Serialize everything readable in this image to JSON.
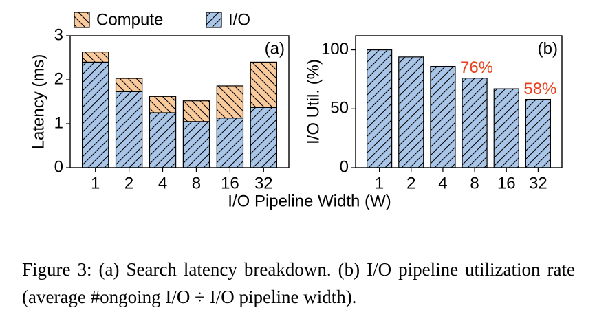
{
  "chart_data": [
    {
      "type": "stacked_bar",
      "ylabel": "Latency (ms)",
      "annotation": "(a)",
      "xlabel": "I/O Pipeline Width (W)",
      "categories": [
        "1",
        "2",
        "4",
        "8",
        "16",
        "32"
      ],
      "series": [
        {
          "name": "I/O",
          "color": "#a9c6e8",
          "hatch": "/",
          "values": [
            2.4,
            1.73,
            1.25,
            1.05,
            1.13,
            1.37
          ]
        },
        {
          "name": "Compute",
          "color": "#f9cb9c",
          "hatch": "\\",
          "values": [
            0.23,
            0.3,
            0.37,
            0.47,
            0.73,
            1.03
          ]
        }
      ],
      "ylim": [
        0,
        3
      ],
      "yticks": [
        0,
        1,
        2,
        3
      ],
      "legend": "top"
    },
    {
      "type": "bar",
      "ylabel": "I/O Util. (%)",
      "annotation": "(b)",
      "categories": [
        "1",
        "2",
        "4",
        "8",
        "16",
        "32"
      ],
      "values": [
        100,
        94,
        86,
        76,
        67,
        58
      ],
      "value_labels": [
        null,
        null,
        null,
        "76%",
        null,
        "58%"
      ],
      "value_label_color": "#e8401c",
      "color": "#a9c6e8",
      "hatch": "/",
      "ylim": [
        0,
        112
      ],
      "yticks": [
        0,
        50,
        100
      ]
    }
  ],
  "caption": "Figure 3:  (a) Search latency breakdown. (b) I/O pipeline utilization rate (average #ongoing I/O ÷ I/O pipeline width)."
}
